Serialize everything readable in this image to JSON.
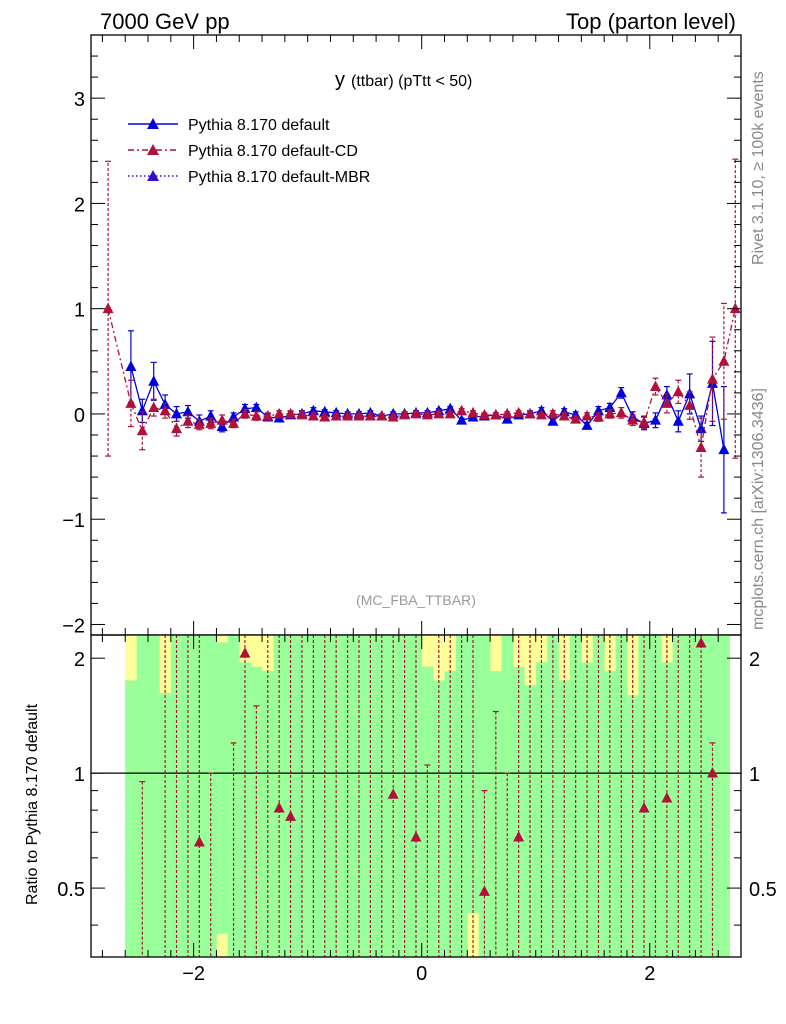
{
  "header": {
    "left": "7000 GeV pp",
    "right": "Top (parton level)"
  },
  "side_labels": {
    "rivet": "Rivet 3.1.10, ≥ 100k events",
    "mcplots": "mcplots.cern.ch [arXiv:1306.3436]"
  },
  "colors": {
    "default": "#0000dd",
    "cd": "#b0103a",
    "mbr": "#3a0acc",
    "band_green": "#99ff99",
    "band_yellow": "#ffff99"
  },
  "chart_data": [
    {
      "type": "line",
      "title_main": "y",
      "title_rest": "(ttbar)  (pTtt < 50)",
      "tag": "(MC_FBA_TTBAR)",
      "xlim": [
        -2.9,
        2.8
      ],
      "ylim": [
        -2.1,
        3.6
      ],
      "yticks": [
        -2,
        -1,
        0,
        1,
        2,
        3
      ],
      "ytick_labels": [
        "−2",
        "−1",
        "0",
        "1",
        "2",
        "3"
      ],
      "legend": [
        "Pythia 8.170 default",
        "Pythia 8.170 default-CD",
        "Pythia 8.170 default-MBR"
      ],
      "x": [
        -2.75,
        -2.65,
        -2.55,
        -2.45,
        -2.35,
        -2.25,
        -2.15,
        -2.05,
        -1.95,
        -1.85,
        -1.75,
        -1.65,
        -1.55,
        -1.45,
        -1.35,
        -1.25,
        -1.15,
        -1.05,
        -0.95,
        -0.85,
        -0.75,
        -0.65,
        -0.55,
        -0.45,
        -0.35,
        -0.25,
        -0.15,
        -0.05,
        0.05,
        0.15,
        0.25,
        0.35,
        0.45,
        0.55,
        0.65,
        0.75,
        0.85,
        0.95,
        1.05,
        1.15,
        1.25,
        1.35,
        1.45,
        1.55,
        1.65,
        1.75,
        1.85,
        1.95,
        2.05,
        2.15,
        2.25,
        2.35,
        2.45,
        2.55,
        2.65,
        2.75
      ],
      "series": [
        {
          "name": "Pythia 8.170 default",
          "values": [
            null,
            null,
            0.45,
            0.03,
            0.31,
            0.09,
            0.0,
            0.02,
            -0.07,
            -0.02,
            -0.12,
            -0.03,
            0.05,
            0.06,
            -0.03,
            -0.04,
            -0.01,
            0.0,
            0.03,
            0.02,
            0.01,
            0.0,
            0.0,
            0.01,
            -0.02,
            0.0,
            0.0,
            0.01,
            0.01,
            0.03,
            0.05,
            -0.06,
            -0.03,
            -0.02,
            -0.01,
            -0.05,
            -0.01,
            0.0,
            0.03,
            -0.07,
            0.02,
            -0.01,
            -0.11,
            0.03,
            0.06,
            0.2,
            -0.03,
            -0.09,
            -0.06,
            0.18,
            -0.07,
            0.19,
            -0.14,
            0.29,
            -0.34,
            null
          ],
          "errors": [
            null,
            null,
            0.34,
            0.11,
            0.18,
            0.09,
            0.07,
            0.06,
            0.06,
            0.05,
            0.05,
            0.04,
            0.04,
            0.03,
            0.03,
            0.03,
            0.03,
            0.03,
            0.03,
            0.02,
            0.02,
            0.02,
            0.02,
            0.02,
            0.02,
            0.02,
            0.02,
            0.02,
            0.02,
            0.02,
            0.02,
            0.02,
            0.02,
            0.02,
            0.02,
            0.02,
            0.02,
            0.03,
            0.03,
            0.03,
            0.03,
            0.03,
            0.03,
            0.04,
            0.04,
            0.05,
            0.05,
            0.06,
            0.07,
            0.08,
            0.1,
            0.19,
            0.12,
            0.4,
            0.6,
            null
          ]
        },
        {
          "name": "Pythia 8.170 default-CD",
          "values": [
            1.0,
            null,
            0.1,
            -0.16,
            0.06,
            0.03,
            -0.14,
            -0.07,
            -0.1,
            -0.09,
            -0.06,
            -0.09,
            0.0,
            -0.02,
            -0.02,
            0.0,
            0.0,
            -0.01,
            -0.02,
            -0.03,
            -0.02,
            -0.02,
            -0.02,
            -0.02,
            -0.02,
            -0.03,
            -0.01,
            0.0,
            -0.01,
            0.0,
            0.0,
            0.03,
            0.01,
            -0.01,
            -0.01,
            0.0,
            0.01,
            0.0,
            -0.01,
            0.0,
            -0.02,
            -0.05,
            -0.02,
            -0.03,
            0.0,
            0.01,
            -0.06,
            -0.08,
            0.26,
            0.1,
            0.21,
            0.08,
            -0.32,
            0.33,
            0.5,
            1.0
          ],
          "errors": [
            1.4,
            null,
            0.22,
            0.18,
            0.08,
            0.07,
            0.07,
            0.06,
            0.05,
            0.05,
            0.05,
            0.04,
            0.04,
            0.04,
            0.03,
            0.03,
            0.03,
            0.03,
            0.03,
            0.02,
            0.02,
            0.02,
            0.02,
            0.02,
            0.02,
            0.02,
            0.02,
            0.02,
            0.02,
            0.02,
            0.02,
            0.02,
            0.02,
            0.02,
            0.02,
            0.02,
            0.02,
            0.02,
            0.02,
            0.03,
            0.03,
            0.03,
            0.03,
            0.04,
            0.04,
            0.05,
            0.05,
            0.06,
            0.08,
            0.09,
            0.11,
            0.13,
            0.28,
            0.4,
            0.55,
            1.42
          ]
        }
      ]
    },
    {
      "type": "line",
      "ylabel": "Ratio to Pythia 8.170 default",
      "xlim": [
        -2.9,
        2.8
      ],
      "ylim": [
        0.33,
        2.3
      ],
      "yticks": [
        0.5,
        1,
        2
      ],
      "ytick_labels": [
        "0.5",
        "1",
        "2"
      ],
      "xticks": [
        -2,
        0,
        2
      ],
      "xtick_labels": [
        "−2",
        "0",
        "2"
      ],
      "reference_line": 1,
      "band_edges": [
        -2.6,
        -2.5,
        -2.4,
        -2.3,
        -2.2,
        -2.1,
        -2.0,
        -1.9,
        -1.8,
        -1.7,
        -1.6,
        -1.5,
        -1.4,
        -1.3,
        -1.2,
        -1.1,
        -1.0,
        -0.9,
        -0.8,
        -0.7,
        -0.6,
        -0.5,
        -0.4,
        -0.3,
        -0.2,
        -0.1,
        0.0,
        0.1,
        0.2,
        0.3,
        0.4,
        0.5,
        0.6,
        0.7,
        0.8,
        0.9,
        1.0,
        1.1,
        1.2,
        1.3,
        1.4,
        1.5,
        1.6,
        1.7,
        1.8,
        1.9,
        2.0,
        2.1,
        2.2,
        2.3,
        2.4,
        2.5,
        2.6,
        2.7
      ],
      "band_green": [
        [
          0.33,
          1.75
        ],
        [
          0.33,
          2.3
        ],
        [
          0.33,
          2.3
        ],
        [
          0.33,
          1.62
        ],
        [
          0.33,
          2.3
        ],
        [
          0.33,
          2.3
        ],
        [
          0.33,
          2.3
        ],
        [
          0.33,
          2.3
        ],
        [
          0.38,
          2.2
        ],
        [
          0.33,
          2.3
        ],
        [
          0.33,
          1.95
        ],
        [
          0.33,
          1.9
        ],
        [
          0.33,
          1.85
        ],
        [
          0.33,
          2.3
        ],
        [
          0.33,
          2.3
        ],
        [
          0.33,
          2.3
        ],
        [
          0.33,
          2.3
        ],
        [
          0.33,
          2.3
        ],
        [
          0.33,
          2.3
        ],
        [
          0.33,
          2.3
        ],
        [
          0.33,
          2.3
        ],
        [
          0.33,
          2.3
        ],
        [
          0.33,
          2.3
        ],
        [
          0.33,
          2.3
        ],
        [
          0.33,
          2.3
        ],
        [
          0.33,
          2.3
        ],
        [
          0.33,
          1.9
        ],
        [
          0.33,
          1.75
        ],
        [
          0.33,
          1.85
        ],
        [
          0.33,
          2.3
        ],
        [
          0.43,
          2.3
        ],
        [
          0.33,
          2.3
        ],
        [
          0.33,
          1.85
        ],
        [
          0.33,
          2.3
        ],
        [
          0.33,
          1.9
        ],
        [
          0.33,
          1.7
        ],
        [
          0.33,
          1.95
        ],
        [
          0.33,
          2.3
        ],
        [
          0.33,
          1.75
        ],
        [
          0.33,
          2.3
        ],
        [
          0.33,
          1.95
        ],
        [
          0.33,
          2.3
        ],
        [
          0.33,
          1.85
        ],
        [
          0.33,
          2.3
        ],
        [
          0.33,
          1.6
        ],
        [
          0.33,
          2.3
        ],
        [
          0.33,
          2.3
        ],
        [
          0.33,
          1.95
        ],
        [
          0.33,
          2.3
        ],
        [
          0.33,
          2.3
        ],
        [
          0.33,
          2.3
        ],
        [
          0.33,
          2.3
        ],
        [
          0.33,
          2.3
        ]
      ],
      "band_yellow": [
        [
          0.33,
          2.3
        ],
        [
          0.33,
          2.3
        ],
        [
          0.33,
          2.3
        ],
        [
          0.33,
          2.3
        ],
        [
          0.33,
          2.3
        ],
        [
          0.33,
          2.3
        ],
        [
          0.33,
          2.3
        ],
        [
          0.33,
          2.3
        ],
        [
          0.33,
          2.3
        ],
        [
          0.33,
          2.3
        ],
        [
          0.33,
          2.3
        ],
        [
          0.33,
          2.3
        ],
        [
          0.33,
          2.3
        ],
        [
          0.33,
          2.3
        ],
        [
          0.33,
          2.3
        ],
        [
          0.33,
          2.3
        ],
        [
          0.33,
          2.3
        ],
        [
          0.33,
          2.3
        ],
        [
          0.33,
          2.3
        ],
        [
          0.33,
          2.3
        ],
        [
          0.33,
          2.3
        ],
        [
          0.33,
          2.3
        ],
        [
          0.33,
          2.3
        ],
        [
          0.33,
          2.3
        ],
        [
          0.33,
          2.3
        ],
        [
          0.33,
          2.3
        ],
        [
          0.33,
          2.3
        ],
        [
          0.33,
          2.3
        ],
        [
          0.33,
          2.3
        ],
        [
          0.33,
          2.3
        ],
        [
          0.33,
          2.3
        ],
        [
          0.33,
          2.3
        ],
        [
          0.33,
          2.3
        ],
        [
          0.33,
          2.3
        ],
        [
          0.33,
          2.3
        ],
        [
          0.33,
          2.3
        ],
        [
          0.33,
          2.3
        ],
        [
          0.33,
          2.3
        ],
        [
          0.33,
          2.3
        ],
        [
          0.33,
          2.3
        ],
        [
          0.33,
          2.3
        ],
        [
          0.33,
          2.3
        ],
        [
          0.33,
          2.3
        ],
        [
          0.33,
          2.3
        ],
        [
          0.33,
          2.3
        ],
        [
          0.33,
          2.3
        ],
        [
          0.33,
          2.3
        ],
        [
          0.33,
          2.3
        ],
        [
          0.33,
          2.3
        ],
        [
          0.33,
          2.3
        ],
        [
          0.33,
          2.3
        ],
        [
          0.33,
          2.3
        ],
        [
          0.33,
          2.3
        ]
      ],
      "ratio_points": [
        {
          "x": -1.95,
          "y": 0.66
        },
        {
          "x": -1.55,
          "y": 2.06
        },
        {
          "x": -1.25,
          "y": 0.81
        },
        {
          "x": -1.15,
          "y": 0.77
        },
        {
          "x": -0.25,
          "y": 0.88
        },
        {
          "x": -0.05,
          "y": 0.68
        },
        {
          "x": 0.55,
          "y": 0.49
        },
        {
          "x": 0.85,
          "y": 0.68
        },
        {
          "x": 1.95,
          "y": 0.81
        },
        {
          "x": 2.15,
          "y": 0.86
        },
        {
          "x": 2.45,
          "y": 2.19
        },
        {
          "x": 2.55,
          "y": 1.0
        }
      ],
      "ratio_whiskers": [
        {
          "x": -2.45,
          "lo": 0.33,
          "hi": 0.95
        },
        {
          "x": -2.25,
          "lo": 0.33,
          "hi": 2.3
        },
        {
          "x": -2.15,
          "lo": 0.33,
          "hi": 2.3
        },
        {
          "x": -2.05,
          "lo": 0.33,
          "hi": 2.3
        },
        {
          "x": -1.95,
          "lo": 0.33,
          "hi": 2.3
        },
        {
          "x": -1.85,
          "lo": 0.33,
          "hi": 1.0
        },
        {
          "x": -1.65,
          "lo": 0.33,
          "hi": 1.2
        },
        {
          "x": -1.55,
          "lo": 0.33,
          "hi": 2.3
        },
        {
          "x": -1.45,
          "lo": 0.33,
          "hi": 1.5
        },
        {
          "x": -1.35,
          "lo": 0.33,
          "hi": 2.3
        },
        {
          "x": -1.25,
          "lo": 0.33,
          "hi": 2.3
        },
        {
          "x": -1.15,
          "lo": 0.33,
          "hi": 2.3
        },
        {
          "x": -1.05,
          "lo": 0.33,
          "hi": 2.3
        },
        {
          "x": -0.95,
          "lo": 0.33,
          "hi": 2.3
        },
        {
          "x": -0.85,
          "lo": 0.33,
          "hi": 2.3
        },
        {
          "x": -0.75,
          "lo": 0.33,
          "hi": 2.3
        },
        {
          "x": -0.65,
          "lo": 0.33,
          "hi": 2.3
        },
        {
          "x": -0.55,
          "lo": 0.33,
          "hi": 2.3
        },
        {
          "x": -0.45,
          "lo": 0.33,
          "hi": 2.3
        },
        {
          "x": -0.35,
          "lo": 0.33,
          "hi": 2.3
        },
        {
          "x": -0.25,
          "lo": 0.33,
          "hi": 2.3
        },
        {
          "x": -0.15,
          "lo": 0.33,
          "hi": 2.3
        },
        {
          "x": -0.05,
          "lo": 0.33,
          "hi": 2.3
        },
        {
          "x": 0.05,
          "lo": 0.33,
          "hi": 1.05
        },
        {
          "x": 0.15,
          "lo": 0.33,
          "hi": 2.3
        },
        {
          "x": 0.25,
          "lo": 0.33,
          "hi": 2.3
        },
        {
          "x": 0.35,
          "lo": 0.33,
          "hi": 2.3
        },
        {
          "x": 0.45,
          "lo": 0.33,
          "hi": 2.3
        },
        {
          "x": 0.55,
          "lo": 0.33,
          "hi": 0.9
        },
        {
          "x": 0.65,
          "lo": 0.33,
          "hi": 1.45
        },
        {
          "x": 0.75,
          "lo": 0.33,
          "hi": 1.0
        },
        {
          "x": 0.85,
          "lo": 0.33,
          "hi": 2.3
        },
        {
          "x": 0.95,
          "lo": 0.33,
          "hi": 2.3
        },
        {
          "x": 1.05,
          "lo": 0.33,
          "hi": 2.3
        },
        {
          "x": 1.15,
          "lo": 0.33,
          "hi": 2.3
        },
        {
          "x": 1.25,
          "lo": 0.33,
          "hi": 2.3
        },
        {
          "x": 1.35,
          "lo": 0.33,
          "hi": 2.3
        },
        {
          "x": 1.45,
          "lo": 0.33,
          "hi": 2.3
        },
        {
          "x": 1.55,
          "lo": 0.33,
          "hi": 2.3
        },
        {
          "x": 1.65,
          "lo": 0.33,
          "hi": 2.3
        },
        {
          "x": 1.75,
          "lo": 0.33,
          "hi": 2.3
        },
        {
          "x": 1.85,
          "lo": 0.33,
          "hi": 2.3
        },
        {
          "x": 1.95,
          "lo": 0.33,
          "hi": 2.3
        },
        {
          "x": 2.05,
          "lo": 0.33,
          "hi": 2.3
        },
        {
          "x": 2.15,
          "lo": 0.33,
          "hi": 2.3
        },
        {
          "x": 2.25,
          "lo": 0.33,
          "hi": 2.3
        },
        {
          "x": 2.35,
          "lo": 0.33,
          "hi": 2.3
        },
        {
          "x": 2.45,
          "lo": 0.33,
          "hi": 2.3
        },
        {
          "x": 2.55,
          "lo": 0.33,
          "hi": 1.2
        }
      ]
    }
  ]
}
